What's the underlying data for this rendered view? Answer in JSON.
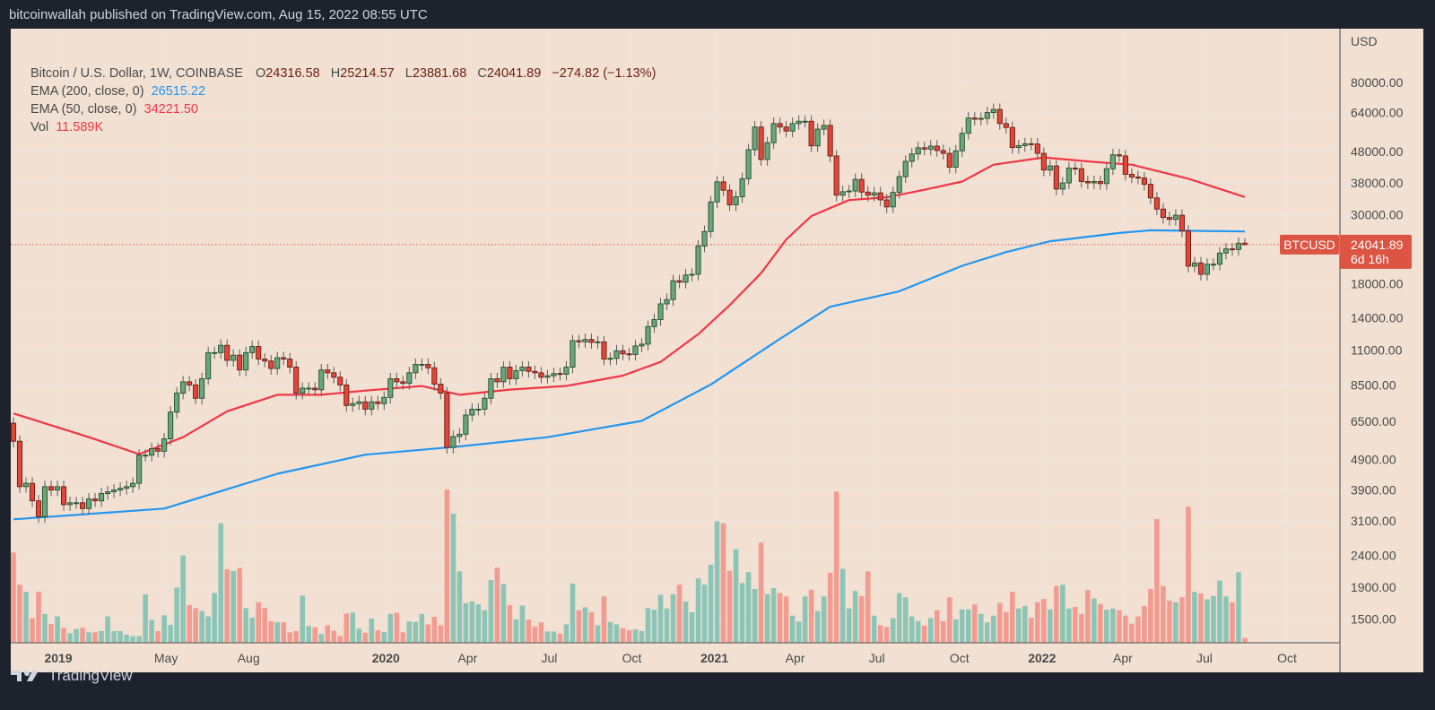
{
  "header": {
    "published": "bitcoinwallah published on TradingView.com, Aug 15, 2022 08:55 UTC"
  },
  "legend": {
    "symbol": "Bitcoin / U.S. Dollar, 1W, COINBASE",
    "open_label": "O",
    "open": "24316.58",
    "high_label": "H",
    "high": "25214.57",
    "low_label": "L",
    "low": "23881.68",
    "close_label": "C",
    "close": "24041.89",
    "change": "−274.82 (−1.13%)",
    "ema200_label": "EMA (200, close, 0)",
    "ema200_value": "26515.22",
    "ema50_label": "EMA (50, close, 0)",
    "ema50_value": "34221.50",
    "vol_label": "Vol",
    "vol_value": "11.589K"
  },
  "footer": {
    "brand": "TradingView"
  },
  "colors": {
    "up": "#6aa57b",
    "up_border": "#1f4f2d",
    "down": "#e0473a",
    "down_border": "#6b1a12",
    "vol_up": "#8cc4b5",
    "vol_down": "#f29c91",
    "ema50": "#f23645",
    "ema200": "#2196f3",
    "background": "#f2e1d2",
    "price_label": "#dc5442"
  },
  "chart_data": {
    "type": "candlestick",
    "interval": "1W",
    "x_start": "2018-11-12",
    "y_scale": "log",
    "currency": "USD",
    "grid": true,
    "first_open": 6400,
    "last_candle": {
      "open": 24316.58,
      "high": 25214.57,
      "low": 23881.68,
      "close": 24041.89
    },
    "closes": [
      5600,
      4000,
      4100,
      3600,
      3200,
      4000,
      3900,
      4000,
      3500,
      3550,
      3550,
      3400,
      3650,
      3600,
      3800,
      3850,
      3900,
      3950,
      4000,
      4100,
      5050,
      5050,
      5300,
      5200,
      5700,
      6950,
      8000,
      8700,
      8500,
      7700,
      8900,
      10800,
      10800,
      11400,
      10200,
      10600,
      9500,
      10800,
      11300,
      10300,
      10150,
      9600,
      10400,
      10300,
      9700,
      8000,
      8300,
      8300,
      8200,
      9500,
      9300,
      9000,
      8500,
      7300,
      7400,
      7500,
      7100,
      7500,
      7400,
      7750,
      8900,
      8700,
      8600,
      9300,
      9900,
      9900,
      9650,
      8550,
      8000,
      5350,
      5800,
      5900,
      6800,
      7100,
      7100,
      7700,
      8900,
      8700,
      9700,
      8900,
      9450,
      9700,
      9400,
      9300,
      9000,
      9100,
      9250,
      9200,
      9700,
      11800,
      11700,
      11900,
      11650,
      11700,
      10300,
      10350,
      10950,
      10700,
      10650,
      11350,
      11500,
      13100,
      13800,
      15500,
      16000,
      18400,
      18200,
      19200,
      19300,
      23800,
      26500,
      33000,
      38300,
      36000,
      32300,
      34300,
      39200,
      48600,
      57500,
      45200,
      51200,
      59000,
      57500,
      55800,
      59000,
      60000,
      60000,
      50000,
      56600,
      58200,
      46400,
      34700,
      35600,
      35800,
      39000,
      35500,
      34700,
      35300,
      33500,
      31800,
      35400,
      39800,
      44600,
      47100,
      49300,
      48800,
      49900,
      48300,
      47300,
      42700,
      48200,
      54900,
      61500,
      60900,
      61300,
      64000,
      65500,
      59000,
      57300,
      49400,
      50100,
      50800,
      50700,
      47300,
      41800,
      43100,
      36300,
      38000,
      42400,
      42200,
      38400,
      38000,
      38400,
      37800,
      42200,
      46800,
      46400,
      40500,
      39700,
      39400,
      37600,
      34000,
      31300,
      29400,
      29000,
      29900,
      26600,
      20500,
      21000,
      19300,
      20800,
      20800,
      22600,
      23300,
      23200,
      24300,
      24041.89
    ],
    "volumes_k": [
      216,
      139,
      122,
      59,
      122,
      69,
      45,
      63,
      36,
      23,
      33,
      36,
      25,
      25,
      28,
      63,
      28,
      28,
      19,
      16,
      16,
      116,
      55,
      28,
      66,
      43,
      132,
      209,
      90,
      83,
      76,
      63,
      119,
      286,
      176,
      172,
      179,
      83,
      60,
      97,
      83,
      52,
      49,
      49,
      25,
      28,
      113,
      40,
      37,
      21,
      42,
      29,
      16,
      70,
      72,
      34,
      24,
      58,
      30,
      26,
      69,
      72,
      25,
      51,
      50,
      69,
      44,
      62,
      42,
      367,
      309,
      171,
      95,
      99,
      92,
      78,
      150,
      180,
      141,
      90,
      56,
      89,
      56,
      39,
      49,
      27,
      27,
      22,
      44,
      142,
      78,
      85,
      73,
      42,
      111,
      50,
      44,
      35,
      30,
      32,
      28,
      83,
      79,
      115,
      82,
      116,
      139,
      99,
      73,
      154,
      139,
      187,
      291,
      286,
      172,
      224,
      143,
      169,
      129,
      240,
      117,
      131,
      119,
      111,
      65,
      51,
      111,
      127,
      76,
      111,
      168,
      362,
      177,
      82,
      124,
      112,
      171,
      65,
      42,
      38,
      59,
      119,
      109,
      63,
      52,
      41,
      59,
      78,
      52,
      109,
      56,
      80,
      80,
      92,
      69,
      49,
      65,
      95,
      74,
      122,
      82,
      88,
      60,
      97,
      105,
      80,
      136,
      139,
      82,
      86,
      69,
      126,
      106,
      93,
      79,
      82,
      78,
      65,
      46,
      63,
      88,
      129,
      296,
      136,
      101,
      97,
      109,
      326,
      122,
      118,
      104,
      112,
      149,
      111,
      97,
      169,
      11.589
    ],
    "series": [
      {
        "name": "EMA (200, close, 0)",
        "color": "#2196f3",
        "points": [
          [
            "2018-11-12",
            3140
          ],
          [
            "2019-04-29",
            3400
          ],
          [
            "2019-09-02",
            4400
          ],
          [
            "2019-12-09",
            5070
          ],
          [
            "2020-03-23",
            5390
          ],
          [
            "2020-06-29",
            5770
          ],
          [
            "2020-10-12",
            6510
          ],
          [
            "2020-12-28",
            8530
          ],
          [
            "2021-03-15",
            11960
          ],
          [
            "2021-05-10",
            15170
          ],
          [
            "2021-07-26",
            17020
          ],
          [
            "2021-10-04",
            20560
          ],
          [
            "2021-11-22",
            22750
          ],
          [
            "2022-01-10",
            24660
          ],
          [
            "2022-03-28",
            26220
          ],
          [
            "2022-05-02",
            26750
          ],
          [
            "2022-08-15",
            26515.22
          ]
        ]
      },
      {
        "name": "EMA (50, close, 0)",
        "color": "#f23645",
        "points": [
          [
            "2018-11-12",
            6880
          ],
          [
            "2019-02-04",
            5770
          ],
          [
            "2019-04-01",
            5090
          ],
          [
            "2019-05-20",
            5770
          ],
          [
            "2019-07-08",
            6990
          ],
          [
            "2019-09-02",
            7900
          ],
          [
            "2019-10-21",
            7900
          ],
          [
            "2019-12-09",
            8150
          ],
          [
            "2020-02-10",
            8430
          ],
          [
            "2020-03-23",
            7900
          ],
          [
            "2020-05-18",
            8210
          ],
          [
            "2020-07-20",
            8440
          ],
          [
            "2020-09-21",
            9110
          ],
          [
            "2020-11-02",
            10080
          ],
          [
            "2020-12-14",
            12380
          ],
          [
            "2021-01-18",
            15350
          ],
          [
            "2021-02-22",
            19470
          ],
          [
            "2021-03-22",
            24980
          ],
          [
            "2021-04-19",
            29720
          ],
          [
            "2021-05-31",
            33460
          ],
          [
            "2021-07-12",
            34150
          ],
          [
            "2021-08-23",
            36100
          ],
          [
            "2021-10-04",
            38400
          ],
          [
            "2021-11-08",
            43500
          ],
          [
            "2022-01-03",
            45900
          ],
          [
            "2022-02-28",
            44400
          ],
          [
            "2022-04-11",
            43500
          ],
          [
            "2022-06-13",
            39200
          ],
          [
            "2022-08-15",
            34221.5
          ]
        ]
      }
    ],
    "y_axis": {
      "label": "USD",
      "ticks": [
        "80000.00",
        "64000.00",
        "48000.00",
        "38000.00",
        "30000.00",
        "18000.00",
        "14000.00",
        "11000.00",
        "8500.00",
        "6500.00",
        "4900.00",
        "3900.00",
        "3100.00",
        "2400.00",
        "1900.00",
        "1500.00"
      ]
    },
    "x_axis": {
      "ticks": [
        {
          "label": "2019",
          "date": "2019-01-01",
          "bold": true
        },
        {
          "label": "May",
          "date": "2019-05-01"
        },
        {
          "label": "Aug",
          "date": "2019-08-01"
        },
        {
          "label": "2020",
          "date": "2020-01-01",
          "bold": true
        },
        {
          "label": "Apr",
          "date": "2020-04-01"
        },
        {
          "label": "Jul",
          "date": "2020-07-01"
        },
        {
          "label": "Oct",
          "date": "2020-10-01"
        },
        {
          "label": "2021",
          "date": "2021-01-01",
          "bold": true
        },
        {
          "label": "Apr",
          "date": "2021-04-01"
        },
        {
          "label": "Jul",
          "date": "2021-07-01"
        },
        {
          "label": "Oct",
          "date": "2021-10-01"
        },
        {
          "label": "2022",
          "date": "2022-01-01",
          "bold": true
        },
        {
          "label": "Apr",
          "date": "2022-04-01"
        },
        {
          "label": "Jul",
          "date": "2022-07-01"
        },
        {
          "label": "Oct",
          "date": "2022-10-01"
        }
      ]
    },
    "price_label": {
      "symbol": "BTCUSD",
      "price": "24041.89",
      "countdown": "6d 16h"
    }
  }
}
